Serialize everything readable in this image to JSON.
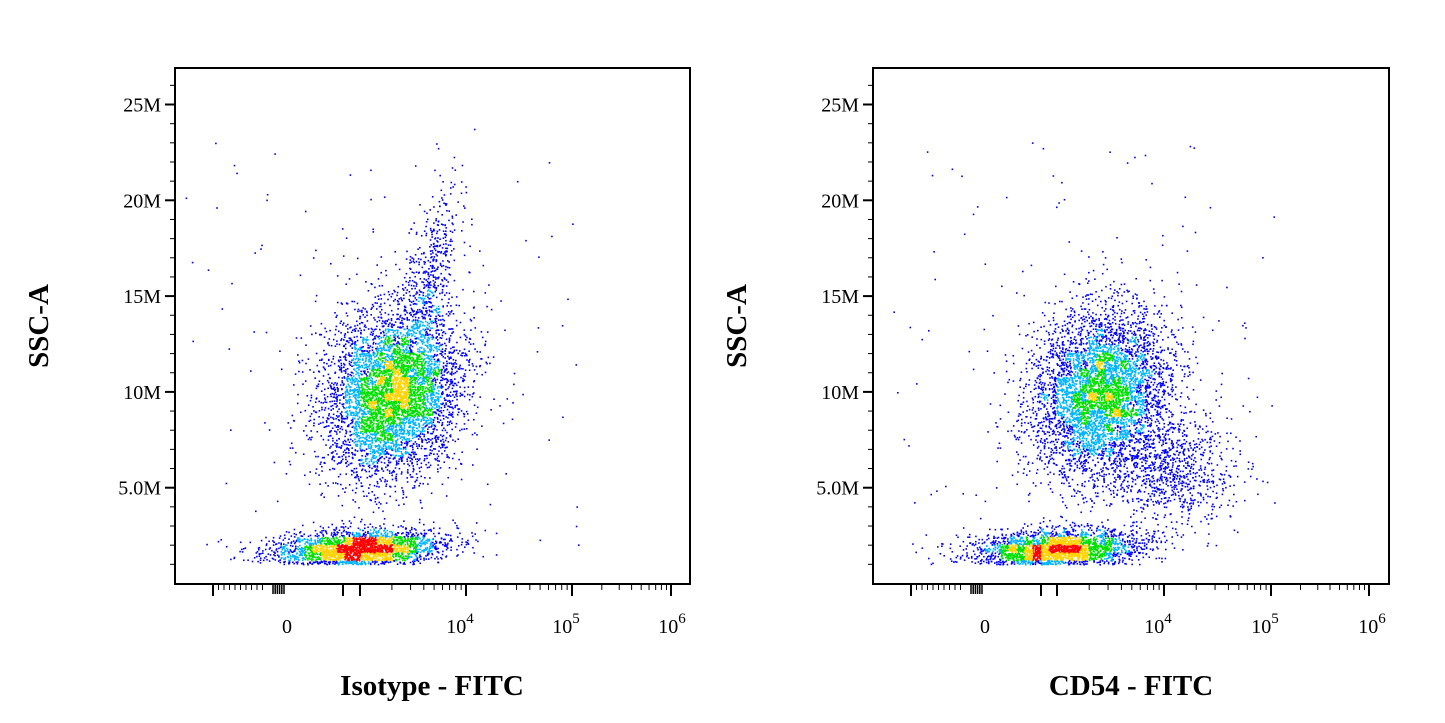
{
  "chart_data": [
    {
      "type": "scatter",
      "subtype": "density-dot-plot",
      "xlabel": "Isotype - FITC",
      "ylabel": "SSC-A",
      "x_scale": "biexponential",
      "y_scale": "linear",
      "ylim": [
        0,
        26000000
      ],
      "y_ticks": [
        {
          "value": 5000000,
          "label": "5.0M"
        },
        {
          "value": 10000000,
          "label": "10M"
        },
        {
          "value": 15000000,
          "label": "15M"
        },
        {
          "value": 20000000,
          "label": "20M"
        },
        {
          "value": 25000000,
          "label": "25M"
        }
      ],
      "x_ticks": [
        {
          "value": 0,
          "label": "0",
          "sup": ""
        },
        {
          "value": 10000,
          "label": "10",
          "sup": "4"
        },
        {
          "value": 100000,
          "label": "10",
          "sup": "5"
        },
        {
          "value": 1000000,
          "label": "10",
          "sup": "6"
        }
      ],
      "populations": [
        {
          "x_center": 2000,
          "y_center": 10000000,
          "count": 5200
        },
        {
          "x_center": 900,
          "y_center": 1800000,
          "count": 2600
        },
        {
          "x_center": 4500,
          "y_center": 16000000,
          "count": 500
        }
      ],
      "grid": false
    },
    {
      "type": "scatter",
      "subtype": "density-dot-plot",
      "xlabel": "CD54 - FITC",
      "ylabel": "SSC-A",
      "x_scale": "biexponential",
      "y_scale": "linear",
      "ylim": [
        0,
        26000000
      ],
      "y_ticks": [
        {
          "value": 5000000,
          "label": "5.0M"
        },
        {
          "value": 10000000,
          "label": "10M"
        },
        {
          "value": 15000000,
          "label": "15M"
        },
        {
          "value": 20000000,
          "label": "20M"
        },
        {
          "value": 25000000,
          "label": "25M"
        }
      ],
      "x_ticks": [
        {
          "value": 0,
          "label": "0",
          "sup": ""
        },
        {
          "value": 10000,
          "label": "10",
          "sup": "4"
        },
        {
          "value": 100000,
          "label": "10",
          "sup": "5"
        },
        {
          "value": 1000000,
          "label": "10",
          "sup": "6"
        }
      ],
      "populations": [
        {
          "x_center": 2500,
          "y_center": 10000000,
          "count": 4800
        },
        {
          "x_center": 1000,
          "y_center": 1800000,
          "count": 2600
        },
        {
          "x_center": 11000,
          "y_center": 6000000,
          "count": 900
        }
      ],
      "grid": false
    }
  ],
  "colors": {
    "density_low": "#0000ff",
    "density_mid_low": "#00b4ff",
    "density_mid": "#00e000",
    "density_mid_high": "#ffd200",
    "density_high": "#ff0000",
    "axis": "#000000",
    "background": "#ffffff"
  }
}
